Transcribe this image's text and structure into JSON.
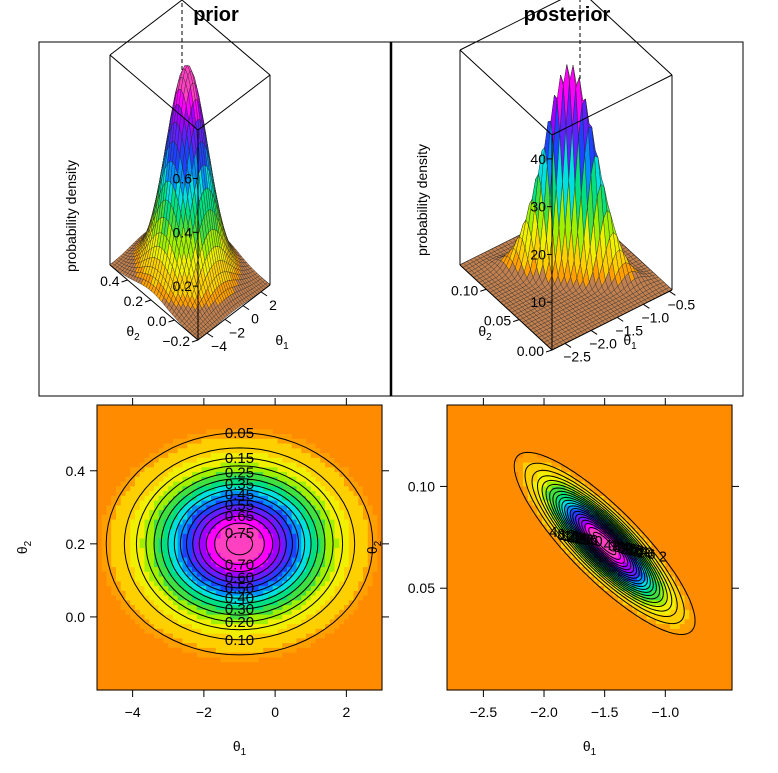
{
  "titles": {
    "prior": "prior",
    "posterior": "posterior"
  },
  "chart_data": [
    {
      "id": "prior-surface",
      "type": "surface",
      "title": "prior",
      "xlabel": "θ1",
      "ylabel": "θ2",
      "zlabel": "probability density",
      "xticks": [
        "−4",
        "−2",
        "0",
        "2"
      ],
      "yticks": [
        "−0.2",
        "0.0",
        "0.2",
        "0.4"
      ],
      "zticks": [
        "0.2",
        "0.4",
        "0.6"
      ],
      "xlim": [
        -5,
        3
      ],
      "ylim": [
        -0.2,
        0.55
      ],
      "zlim": [
        0,
        0.78
      ],
      "distribution": {
        "mean": [
          -1,
          0.2
        ],
        "sd": [
          1.6,
          0.13
        ],
        "rho": 0,
        "peak": 0.77
      }
    },
    {
      "id": "posterior-surface",
      "type": "surface",
      "title": "posterior",
      "xlabel": "θ1",
      "ylabel": "θ2",
      "zlabel": "probability density",
      "xticks": [
        "−2.5",
        "−2.0",
        "−1.5",
        "−1.0",
        "−0.5"
      ],
      "yticks": [
        "0.00",
        "0.05",
        "0.10"
      ],
      "zticks": [
        "10",
        "20",
        "30",
        "40"
      ],
      "xlim": [
        -2.75,
        -0.45
      ],
      "ylim": [
        0.0,
        0.14
      ],
      "zlim": [
        0,
        45
      ],
      "distribution": {
        "mean": [
          -1.5,
          0.072
        ],
        "sd": [
          0.3,
          0.018
        ],
        "rho": -0.85,
        "peak": 44
      }
    },
    {
      "id": "prior-contour",
      "type": "heatmap",
      "xlabel": "θ1",
      "ylabel": "θ2",
      "xticks": [
        "−4",
        "−2",
        "0",
        "2"
      ],
      "yticks": [
        "0.0",
        "0.2",
        "0.4"
      ],
      "xlim": [
        -5,
        3
      ],
      "ylim": [
        -0.2,
        0.58
      ],
      "contour_levels": [
        0.05,
        0.1,
        0.15,
        0.2,
        0.25,
        0.3,
        0.35,
        0.4,
        0.45,
        0.5,
        0.55,
        0.6,
        0.65,
        0.7,
        0.75
      ],
      "contour_labels": [
        "0.05",
        "0.10",
        "0.15",
        "0.20",
        "0.25",
        "0.30",
        "0.35",
        "0.40",
        "0.45",
        "0.50",
        "0.55",
        "0.60",
        "0.65",
        "0.70",
        "0.75"
      ],
      "distribution": {
        "mean": [
          -1,
          0.2
        ],
        "sd": [
          1.6,
          0.13
        ],
        "rho": 0,
        "peak": 0.77
      }
    },
    {
      "id": "posterior-contour",
      "type": "heatmap",
      "xlabel": "θ1",
      "ylabel": "θ2",
      "xticks": [
        "−2.5",
        "−2.0",
        "−1.5",
        "−1.0"
      ],
      "yticks": [
        "0.05",
        "0.10"
      ],
      "xlim": [
        -2.8,
        -0.45
      ],
      "ylim": [
        0.0,
        0.14
      ],
      "contour_levels": [
        2,
        4,
        6,
        8,
        10,
        12,
        14,
        16,
        18,
        20,
        22,
        24,
        26,
        28,
        30,
        32,
        34,
        36,
        38,
        40,
        42
      ],
      "contour_labels": [
        "2",
        "4",
        "6",
        "8",
        "10",
        "12",
        "14",
        "16",
        "18",
        "20",
        "22",
        "24",
        "26",
        "28",
        "30",
        "32",
        "34",
        "36",
        "38",
        "40",
        "42"
      ],
      "distribution": {
        "mean": [
          -1.5,
          0.072
        ],
        "sd": [
          0.3,
          0.018
        ],
        "rho": -0.85,
        "peak": 44
      }
    }
  ],
  "colors": {
    "background_low": "#ff8c00",
    "palette": [
      "#ffa000",
      "#ffd000",
      "#f0f000",
      "#a0f000",
      "#40e040",
      "#00e080",
      "#00e0e0",
      "#0090ff",
      "#2040ff",
      "#6020ff",
      "#a000ff",
      "#ff00ff",
      "#ff40c0"
    ],
    "lines": "#000000"
  }
}
